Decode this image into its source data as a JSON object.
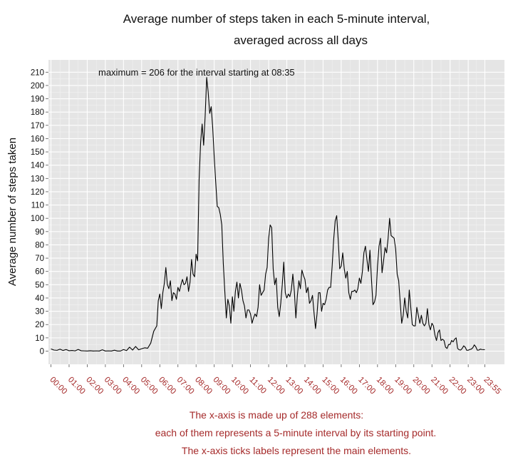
{
  "chart_data": {
    "type": "line",
    "title_line1": "Average number of steps taken in each 5-minute interval,",
    "title_line2": "averaged across all days",
    "ylabel": "Average number of steps taken",
    "annotation": "maximum = 206 for the interval starting at 08:35",
    "notes": [
      "The x-axis is made up of 288 elements:",
      "each of them represents a 5-minute interval by its starting point.",
      "The x-axis ticks labels represent the main elements."
    ],
    "x_tick_labels": [
      "00:00",
      "01:00",
      "02:00",
      "03:00",
      "04:00",
      "05:00",
      "06:00",
      "07:00",
      "08:00",
      "09:00",
      "10:00",
      "11:00",
      "12:00",
      "13:00",
      "14:00",
      "15:00",
      "16:00",
      "17:00",
      "18:00",
      "19:00",
      "20:00",
      "21:00",
      "22:00",
      "23:00",
      "23:55"
    ],
    "y_ticks": [
      0,
      10,
      20,
      30,
      40,
      50,
      60,
      70,
      80,
      90,
      100,
      110,
      120,
      130,
      140,
      150,
      160,
      170,
      180,
      190,
      200,
      210
    ],
    "ylim": [
      -10,
      217
    ],
    "grid": true,
    "x_unit": "5-minute interval start time (HH:MM)",
    "series": [
      {
        "points": [
          [
            "00:00",
            1.7
          ],
          [
            "00:10",
            0.8
          ],
          [
            "00:20",
            0.6
          ],
          [
            "00:30",
            1.5
          ],
          [
            "00:40",
            0.5
          ],
          [
            "00:50",
            1.2
          ],
          [
            "01:00",
            0.3
          ],
          [
            "01:10",
            0.5
          ],
          [
            "01:20",
            0.2
          ],
          [
            "01:30",
            1.3
          ],
          [
            "01:40",
            0.3
          ],
          [
            "01:50",
            0.2
          ],
          [
            "02:00",
            0.1
          ],
          [
            "02:10",
            0.3
          ],
          [
            "02:20",
            0.1
          ],
          [
            "02:30",
            0.2
          ],
          [
            "02:40",
            0.1
          ],
          [
            "02:50",
            1.0
          ],
          [
            "03:00",
            0.1
          ],
          [
            "03:10",
            0.2
          ],
          [
            "03:20",
            0.1
          ],
          [
            "03:30",
            0.7
          ],
          [
            "03:40",
            0.1
          ],
          [
            "03:50",
            0.1
          ],
          [
            "04:00",
            1.2
          ],
          [
            "04:10",
            0.4
          ],
          [
            "04:20",
            3.0
          ],
          [
            "04:30",
            0.8
          ],
          [
            "04:40",
            3.5
          ],
          [
            "04:50",
            1.0
          ],
          [
            "05:00",
            1.8
          ],
          [
            "05:10",
            2.5
          ],
          [
            "05:20",
            2.2
          ],
          [
            "05:30",
            6.0
          ],
          [
            "05:40",
            15.0
          ],
          [
            "05:50",
            19.0
          ],
          [
            "05:55",
            38.0
          ],
          [
            "06:00",
            43.0
          ],
          [
            "06:05",
            32.0
          ],
          [
            "06:10",
            44.0
          ],
          [
            "06:15",
            51.0
          ],
          [
            "06:20",
            63.0
          ],
          [
            "06:25",
            50.0
          ],
          [
            "06:30",
            47.0
          ],
          [
            "06:35",
            53.0
          ],
          [
            "06:40",
            38.0
          ],
          [
            "06:45",
            44.0
          ],
          [
            "06:50",
            43.0
          ],
          [
            "06:55",
            39.0
          ],
          [
            "07:00",
            48.0
          ],
          [
            "07:05",
            45.0
          ],
          [
            "07:10",
            50.0
          ],
          [
            "07:15",
            54.0
          ],
          [
            "07:20",
            50.0
          ],
          [
            "07:25",
            51.0
          ],
          [
            "07:30",
            56.0
          ],
          [
            "07:35",
            45.0
          ],
          [
            "07:40",
            52.0
          ],
          [
            "07:45",
            69.0
          ],
          [
            "07:50",
            58.0
          ],
          [
            "07:55",
            56.0
          ],
          [
            "08:00",
            73.0
          ],
          [
            "08:05",
            68.0
          ],
          [
            "08:10",
            129.0
          ],
          [
            "08:15",
            157.0
          ],
          [
            "08:20",
            171.0
          ],
          [
            "08:25",
            155.0
          ],
          [
            "08:30",
            177.0
          ],
          [
            "08:35",
            206.0
          ],
          [
            "08:40",
            195.0
          ],
          [
            "08:45",
            179.0
          ],
          [
            "08:50",
            184.0
          ],
          [
            "08:55",
            168.0
          ],
          [
            "09:00",
            146.0
          ],
          [
            "09:05",
            127.0
          ],
          [
            "09:10",
            109.0
          ],
          [
            "09:15",
            108.0
          ],
          [
            "09:20",
            103.0
          ],
          [
            "09:25",
            95.0
          ],
          [
            "09:30",
            66.0
          ],
          [
            "09:35",
            45.0
          ],
          [
            "09:40",
            25.0
          ],
          [
            "09:45",
            39.0
          ],
          [
            "09:50",
            34.0
          ],
          [
            "09:55",
            21.0
          ],
          [
            "10:00",
            41.0
          ],
          [
            "10:05",
            30.0
          ],
          [
            "10:10",
            45.0
          ],
          [
            "10:15",
            52.0
          ],
          [
            "10:20",
            40.0
          ],
          [
            "10:25",
            51.0
          ],
          [
            "10:30",
            46.0
          ],
          [
            "10:35",
            38.0
          ],
          [
            "10:40",
            34.0
          ],
          [
            "10:45",
            25.0
          ],
          [
            "10:50",
            31.0
          ],
          [
            "10:55",
            31.0
          ],
          [
            "11:00",
            28.0
          ],
          [
            "11:05",
            21.0
          ],
          [
            "11:10",
            25.0
          ],
          [
            "11:15",
            28.0
          ],
          [
            "11:20",
            26.0
          ],
          [
            "11:25",
            33.0
          ],
          [
            "11:30",
            50.0
          ],
          [
            "11:35",
            42.0
          ],
          [
            "11:40",
            44.0
          ],
          [
            "11:45",
            46.0
          ],
          [
            "11:50",
            58.0
          ],
          [
            "11:55",
            63.0
          ],
          [
            "12:00",
            85.0
          ],
          [
            "12:05",
            95.0
          ],
          [
            "12:10",
            93.0
          ],
          [
            "12:15",
            62.0
          ],
          [
            "12:20",
            50.0
          ],
          [
            "12:25",
            55.0
          ],
          [
            "12:30",
            33.0
          ],
          [
            "12:35",
            26.0
          ],
          [
            "12:40",
            36.0
          ],
          [
            "12:45",
            50.0
          ],
          [
            "12:50",
            67.0
          ],
          [
            "12:55",
            44.0
          ],
          [
            "13:00",
            40.0
          ],
          [
            "13:05",
            43.0
          ],
          [
            "13:10",
            41.0
          ],
          [
            "13:15",
            46.0
          ],
          [
            "13:20",
            58.0
          ],
          [
            "13:25",
            45.0
          ],
          [
            "13:30",
            25.0
          ],
          [
            "13:35",
            42.0
          ],
          [
            "13:40",
            53.0
          ],
          [
            "13:45",
            47.0
          ],
          [
            "13:50",
            61.0
          ],
          [
            "13:55",
            57.0
          ],
          [
            "14:00",
            54.0
          ],
          [
            "14:05",
            44.0
          ],
          [
            "14:10",
            48.0
          ],
          [
            "14:15",
            36.0
          ],
          [
            "14:20",
            38.0
          ],
          [
            "14:25",
            42.0
          ],
          [
            "14:30",
            29.0
          ],
          [
            "14:35",
            17.0
          ],
          [
            "14:40",
            28.0
          ],
          [
            "14:45",
            44.0
          ],
          [
            "14:50",
            44.0
          ],
          [
            "14:55",
            30.0
          ],
          [
            "15:00",
            36.0
          ],
          [
            "15:05",
            35.0
          ],
          [
            "15:10",
            39.0
          ],
          [
            "15:15",
            46.0
          ],
          [
            "15:20",
            48.0
          ],
          [
            "15:25",
            48.0
          ],
          [
            "15:30",
            64.0
          ],
          [
            "15:35",
            84.0
          ],
          [
            "15:40",
            98.0
          ],
          [
            "15:45",
            102.0
          ],
          [
            "15:50",
            84.0
          ],
          [
            "15:55",
            62.0
          ],
          [
            "16:00",
            64.0
          ],
          [
            "16:05",
            74.0
          ],
          [
            "16:10",
            62.0
          ],
          [
            "16:15",
            55.0
          ],
          [
            "16:20",
            60.0
          ],
          [
            "16:25",
            44.0
          ],
          [
            "16:30",
            39.0
          ],
          [
            "16:35",
            45.0
          ],
          [
            "16:40",
            45.0
          ],
          [
            "16:45",
            46.0
          ],
          [
            "16:50",
            44.0
          ],
          [
            "16:55",
            47.0
          ],
          [
            "17:00",
            55.0
          ],
          [
            "17:05",
            51.0
          ],
          [
            "17:10",
            60.0
          ],
          [
            "17:15",
            74.0
          ],
          [
            "17:20",
            79.0
          ],
          [
            "17:25",
            69.0
          ],
          [
            "17:30",
            60.0
          ],
          [
            "17:35",
            76.0
          ],
          [
            "17:40",
            54.0
          ],
          [
            "17:45",
            35.0
          ],
          [
            "17:50",
            37.0
          ],
          [
            "17:55",
            42.0
          ],
          [
            "18:00",
            64.0
          ],
          [
            "18:05",
            79.0
          ],
          [
            "18:10",
            85.0
          ],
          [
            "18:15",
            59.0
          ],
          [
            "18:20",
            68.0
          ],
          [
            "18:25",
            78.0
          ],
          [
            "18:30",
            74.0
          ],
          [
            "18:35",
            85.0
          ],
          [
            "18:40",
            100.0
          ],
          [
            "18:45",
            87.0
          ],
          [
            "18:50",
            86.0
          ],
          [
            "18:55",
            85.0
          ],
          [
            "19:00",
            77.0
          ],
          [
            "19:05",
            58.0
          ],
          [
            "19:10",
            53.0
          ],
          [
            "19:15",
            37.0
          ],
          [
            "19:20",
            21.0
          ],
          [
            "19:25",
            27.0
          ],
          [
            "19:30",
            40.0
          ],
          [
            "19:35",
            30.0
          ],
          [
            "19:40",
            25.0
          ],
          [
            "19:45",
            46.0
          ],
          [
            "19:50",
            33.0
          ],
          [
            "19:55",
            20.0
          ],
          [
            "20:00",
            19.0
          ],
          [
            "20:05",
            19.0
          ],
          [
            "20:10",
            33.0
          ],
          [
            "20:15",
            27.0
          ],
          [
            "20:20",
            21.0
          ],
          [
            "20:25",
            27.0
          ],
          [
            "20:30",
            21.0
          ],
          [
            "20:35",
            19.0
          ],
          [
            "20:40",
            21.0
          ],
          [
            "20:45",
            32.0
          ],
          [
            "20:50",
            20.0
          ],
          [
            "20:55",
            16.0
          ],
          [
            "21:00",
            21.0
          ],
          [
            "21:05",
            19.0
          ],
          [
            "21:10",
            12.0
          ],
          [
            "21:15",
            8.0
          ],
          [
            "21:20",
            14.0
          ],
          [
            "21:25",
            16.0
          ],
          [
            "21:30",
            8.0
          ],
          [
            "21:35",
            9.0
          ],
          [
            "21:40",
            8.0
          ],
          [
            "21:45",
            3.0
          ],
          [
            "21:50",
            2.0
          ],
          [
            "21:55",
            5.0
          ],
          [
            "22:00",
            5.0
          ],
          [
            "22:05",
            8.0
          ],
          [
            "22:10",
            7.0
          ],
          [
            "22:15",
            9.0
          ],
          [
            "22:20",
            10.0
          ],
          [
            "22:25",
            2.0
          ],
          [
            "22:30",
            1.0
          ],
          [
            "22:35",
            0.8
          ],
          [
            "22:40",
            2.0
          ],
          [
            "22:45",
            4.0
          ],
          [
            "22:50",
            3.0
          ],
          [
            "22:55",
            0.6
          ],
          [
            "23:00",
            0.7
          ],
          [
            "23:05",
            1.2
          ],
          [
            "23:10",
            1.5
          ],
          [
            "23:15",
            2.5
          ],
          [
            "23:20",
            4.7
          ],
          [
            "23:25",
            3.3
          ],
          [
            "23:30",
            0.7
          ],
          [
            "23:35",
            0.8
          ],
          [
            "23:40",
            1.5
          ],
          [
            "23:45",
            1.2
          ],
          [
            "23:55",
            1.1
          ]
        ]
      }
    ]
  }
}
